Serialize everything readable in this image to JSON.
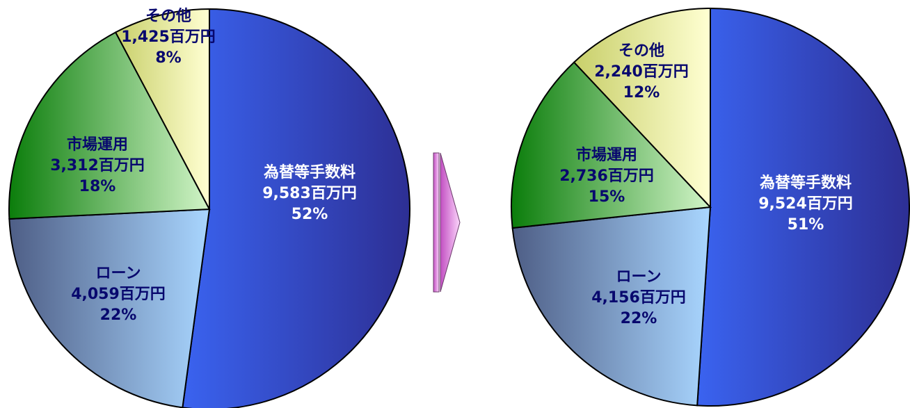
{
  "chart_data": [
    {
      "type": "pie",
      "slices": [
        {
          "name": "為替等手数料",
          "value": 9583,
          "value_text": "9,583百万円",
          "percent": 52,
          "percent_text": "52%"
        },
        {
          "name": "ローン",
          "value": 4059,
          "value_text": "4,059百万円",
          "percent": 22,
          "percent_text": "22%"
        },
        {
          "name": "市場運用",
          "value": 3312,
          "value_text": "3,312百万円",
          "percent": 18,
          "percent_text": "18%"
        },
        {
          "name": "その他",
          "value": 1425,
          "value_text": "1,425百万円",
          "percent": 8,
          "percent_text": "8%"
        }
      ]
    },
    {
      "type": "pie",
      "slices": [
        {
          "name": "為替等手数料",
          "value": 9524,
          "value_text": "9,524百万円",
          "percent": 51,
          "percent_text": "51%"
        },
        {
          "name": "ローン",
          "value": 4156,
          "value_text": "4,156百万円",
          "percent": 22,
          "percent_text": "22%"
        },
        {
          "name": "市場運用",
          "value": 2736,
          "value_text": "2,736百万円",
          "percent": 15,
          "percent_text": "15%"
        },
        {
          "name": "その他",
          "value": 2240,
          "value_text": "2,240百万円",
          "percent": 12,
          "percent_text": "12%"
        }
      ]
    }
  ],
  "colors": {
    "fees": [
      "#3a63f0",
      "#2d2f94"
    ],
    "loan": [
      "#4e5e86",
      "#a9d6ff"
    ],
    "market": [
      "#0b7d0b",
      "#d2f5c8"
    ],
    "other": [
      "#c8cf6a",
      "#ffffd2"
    ],
    "text_dark": "#08086e",
    "text_light": "#ffffff",
    "arrow": [
      "#c24fc2",
      "#fbd6fb"
    ]
  },
  "arrow_icon": "right-arrow-icon"
}
